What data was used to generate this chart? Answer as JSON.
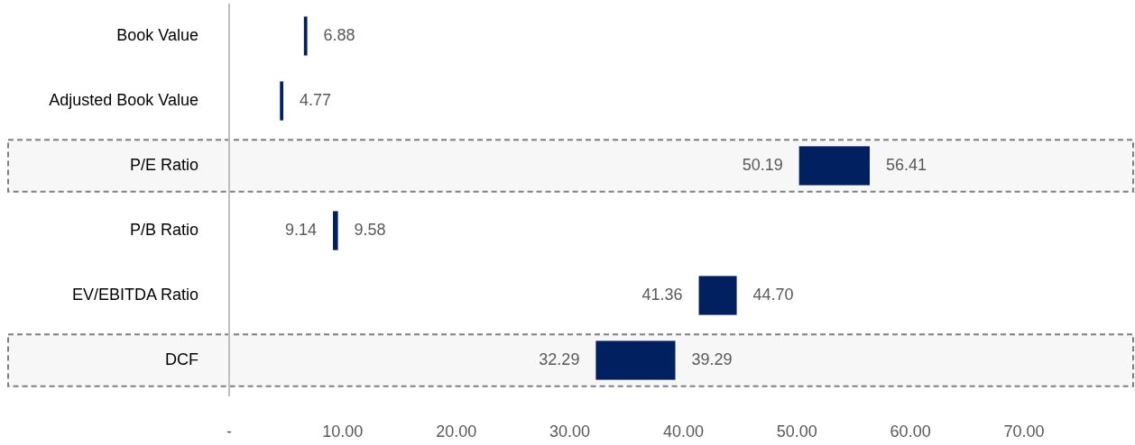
{
  "chart_data": {
    "type": "bar",
    "orientation": "horizontal",
    "categories": [
      "Book Value",
      "Adjusted Book Value",
      "P/E Ratio",
      "P/B Ratio",
      "EV/EBITDA Ratio",
      "DCF"
    ],
    "base": [
      6.58,
      4.47,
      50.19,
      9.14,
      41.36,
      32.29
    ],
    "values": [
      0.3,
      0.3,
      6.22,
      0.44,
      3.34,
      7
    ],
    "value_labels": [
      "6.88",
      "4.77",
      "56.41",
      "9.58",
      "44.70",
      "39.29"
    ],
    "color": "#002060",
    "xlim": [
      0,
      70
    ],
    "xticks": [
      {
        "value": 0,
        "label": "-"
      },
      {
        "value": 10,
        "label": "10.00"
      },
      {
        "value": 20,
        "label": "20.00"
      },
      {
        "value": 30,
        "label": "30.00"
      },
      {
        "value": 40,
        "label": "40.00"
      },
      {
        "value": 50,
        "label": "50.00"
      },
      {
        "value": 60,
        "label": "60.00"
      },
      {
        "value": 70,
        "label": "70.00"
      }
    ],
    "annotations": [
      {
        "text": "50.19",
        "x": 50.19,
        "y": "P/E Ratio"
      },
      {
        "text": "9.14",
        "x": 9.14,
        "y": "P/B Ratio"
      },
      {
        "text": "41.36",
        "x": 41.36,
        "y": "EV/EBITDA Ratio"
      },
      {
        "text": "32.29",
        "x": 32.29,
        "y": "DCF"
      }
    ],
    "bands": [
      {
        "axis": "y",
        "from": "P/E Ratio",
        "to": "P/E Ratio",
        "color": "#7f7f7f"
      },
      {
        "axis": "y",
        "from": "DCF",
        "to": "DCF",
        "color": "#7f7f7f"
      }
    ]
  }
}
